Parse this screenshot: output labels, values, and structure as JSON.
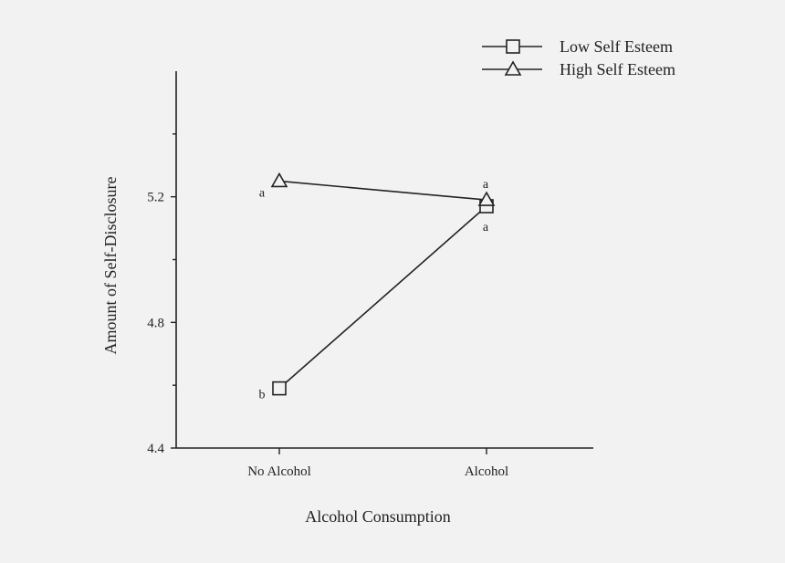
{
  "chart_data": {
    "type": "line",
    "title": "",
    "xlabel": "Alcohol Consumption",
    "ylabel": "Amount of Self-Disclosure",
    "categories": [
      "No Alcohol",
      "Alcohol"
    ],
    "ylim": [
      4.4,
      5.6
    ],
    "yticks": [
      4.4,
      4.8,
      5.2
    ],
    "ytick_labels": [
      "4.4",
      "4.8",
      "5.2"
    ],
    "grid": false,
    "legend_position": "top-right",
    "series": [
      {
        "name": "Low Self Esteem",
        "marker": "square",
        "values": [
          4.59,
          5.17
        ],
        "point_labels": [
          "b",
          "a"
        ]
      },
      {
        "name": "High Self Esteem",
        "marker": "triangle",
        "values": [
          5.25,
          5.19
        ],
        "point_labels": [
          "a",
          "a"
        ]
      }
    ]
  }
}
